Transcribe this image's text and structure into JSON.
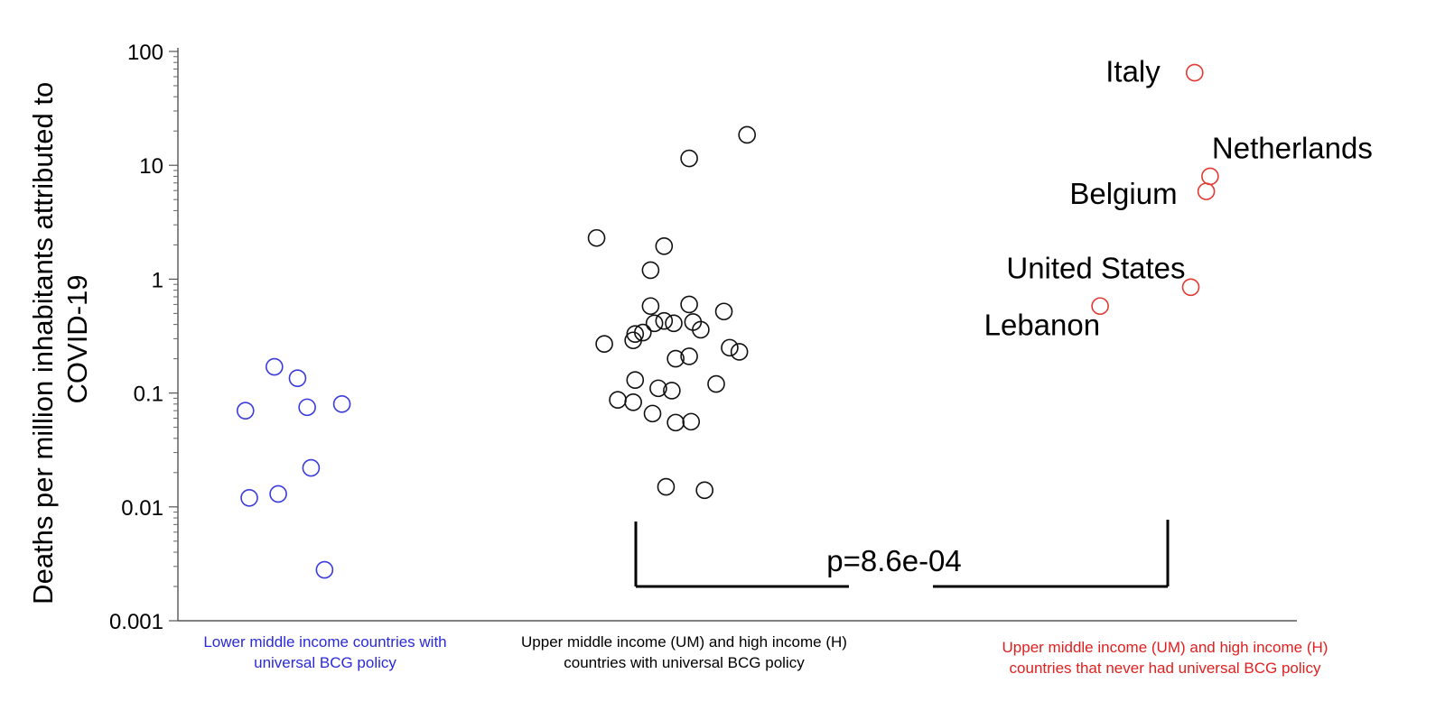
{
  "chart_data": {
    "type": "scatter",
    "yscale": "log",
    "ylim": [
      0.001,
      100
    ],
    "ylabel": "Deaths per million inhabitants attributed to COVID-19",
    "yticks": [
      {
        "value": 100,
        "label": "100"
      },
      {
        "value": 10,
        "label": "10"
      },
      {
        "value": 1,
        "label": "1"
      },
      {
        "value": 0.1,
        "label": "0.1"
      },
      {
        "value": 0.01,
        "label": "0.01"
      },
      {
        "value": 0.001,
        "label": "0.001"
      }
    ],
    "groups": [
      {
        "name": "Lower middle income countries with universal BCG policy",
        "color": "#3b3bdc",
        "points": [
          {
            "x": 0.35,
            "y": 0.07
          },
          {
            "x": 0.5,
            "y": 0.17
          },
          {
            "x": 0.62,
            "y": 0.135
          },
          {
            "x": 0.67,
            "y": 0.075
          },
          {
            "x": 0.85,
            "y": 0.08
          },
          {
            "x": 0.37,
            "y": 0.012
          },
          {
            "x": 0.52,
            "y": 0.013
          },
          {
            "x": 0.69,
            "y": 0.022
          },
          {
            "x": 0.76,
            "y": 0.0028
          }
        ]
      },
      {
        "name": "Upper middle income (UM) and high income (H) countries with universal BCG policy",
        "color": "#111111",
        "points": [
          {
            "x": 2.95,
            "y": 18.5
          },
          {
            "x": 2.65,
            "y": 11.5
          },
          {
            "x": 2.17,
            "y": 2.3
          },
          {
            "x": 2.52,
            "y": 1.95
          },
          {
            "x": 2.45,
            "y": 1.2
          },
          {
            "x": 2.45,
            "y": 0.58
          },
          {
            "x": 2.65,
            "y": 0.6
          },
          {
            "x": 2.83,
            "y": 0.52
          },
          {
            "x": 2.52,
            "y": 0.43
          },
          {
            "x": 2.47,
            "y": 0.41
          },
          {
            "x": 2.57,
            "y": 0.41
          },
          {
            "x": 2.67,
            "y": 0.42
          },
          {
            "x": 2.71,
            "y": 0.36
          },
          {
            "x": 2.41,
            "y": 0.34
          },
          {
            "x": 2.37,
            "y": 0.33
          },
          {
            "x": 2.36,
            "y": 0.29
          },
          {
            "x": 2.21,
            "y": 0.27
          },
          {
            "x": 2.86,
            "y": 0.25
          },
          {
            "x": 2.91,
            "y": 0.23
          },
          {
            "x": 2.58,
            "y": 0.2
          },
          {
            "x": 2.65,
            "y": 0.21
          },
          {
            "x": 2.37,
            "y": 0.13
          },
          {
            "x": 2.49,
            "y": 0.11
          },
          {
            "x": 2.56,
            "y": 0.105
          },
          {
            "x": 2.79,
            "y": 0.12
          },
          {
            "x": 2.28,
            "y": 0.087
          },
          {
            "x": 2.36,
            "y": 0.083
          },
          {
            "x": 2.46,
            "y": 0.066
          },
          {
            "x": 2.58,
            "y": 0.055
          },
          {
            "x": 2.66,
            "y": 0.056
          },
          {
            "x": 2.53,
            "y": 0.015
          },
          {
            "x": 2.73,
            "y": 0.014
          }
        ]
      },
      {
        "name": "Upper middle income (UM) and high income (H) countries that never had universal BCG policy",
        "color": "#e03a32",
        "points": [
          {
            "label": "Italy",
            "x": 5.27,
            "y": 65
          },
          {
            "label": "Netherlands",
            "x": 5.35,
            "y": 8
          },
          {
            "label": "Belgium",
            "x": 5.33,
            "y": 5.9
          },
          {
            "label": "United States",
            "x": 5.25,
            "y": 0.85
          },
          {
            "label": "Lebanon",
            "x": 4.78,
            "y": 0.58
          }
        ]
      }
    ],
    "annotation": {
      "text": "p=8.6e-04",
      "from_group": 2,
      "to_group": 3
    }
  },
  "labels": {
    "group1": "Lower middle income countries with universal BCG policy",
    "group2": "Upper middle income (UM)  and high income (H) countries with universal BCG policy",
    "group3": "Upper middle income (UM)  and high income (H) countries that never had universal BCG policy"
  }
}
